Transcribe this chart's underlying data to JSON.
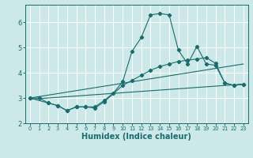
{
  "xlabel": "Humidex (Indice chaleur)",
  "bg_color": "#cce8e8",
  "grid_color": "#ffffff",
  "line_color": "#1a6b6b",
  "xlim": [
    -0.5,
    23.5
  ],
  "ylim": [
    2.0,
    6.7
  ],
  "yticks": [
    2,
    3,
    4,
    5,
    6
  ],
  "xticks": [
    0,
    1,
    2,
    3,
    4,
    5,
    6,
    7,
    8,
    9,
    10,
    11,
    12,
    13,
    14,
    15,
    16,
    17,
    18,
    19,
    20,
    21,
    22,
    23
  ],
  "spiky_x": [
    0,
    1,
    2,
    3,
    4,
    5,
    6,
    7,
    8,
    9,
    10,
    11,
    12,
    13,
    14,
    15,
    16,
    17,
    18,
    19,
    20,
    21,
    22,
    23
  ],
  "spiky_y": [
    3.0,
    3.0,
    2.8,
    2.7,
    2.5,
    2.65,
    2.65,
    2.65,
    2.9,
    3.2,
    3.65,
    4.85,
    5.4,
    6.3,
    6.35,
    6.3,
    4.9,
    4.35,
    5.05,
    4.35,
    4.3,
    3.6,
    3.5,
    3.55
  ],
  "smooth_x": [
    0,
    2,
    3,
    4,
    5,
    6,
    7,
    8,
    10,
    11,
    12,
    13,
    14,
    15,
    16,
    17,
    18,
    19,
    20,
    21,
    22,
    23
  ],
  "smooth_y": [
    3.0,
    2.8,
    2.7,
    2.5,
    2.65,
    2.65,
    2.6,
    2.85,
    3.5,
    3.7,
    3.9,
    4.1,
    4.25,
    4.35,
    4.45,
    4.5,
    4.55,
    4.6,
    4.38,
    3.6,
    3.5,
    3.55
  ],
  "line1_x": [
    0,
    23
  ],
  "line1_y": [
    2.95,
    3.55
  ],
  "line2_x": [
    0,
    23
  ],
  "line2_y": [
    3.0,
    4.35
  ]
}
